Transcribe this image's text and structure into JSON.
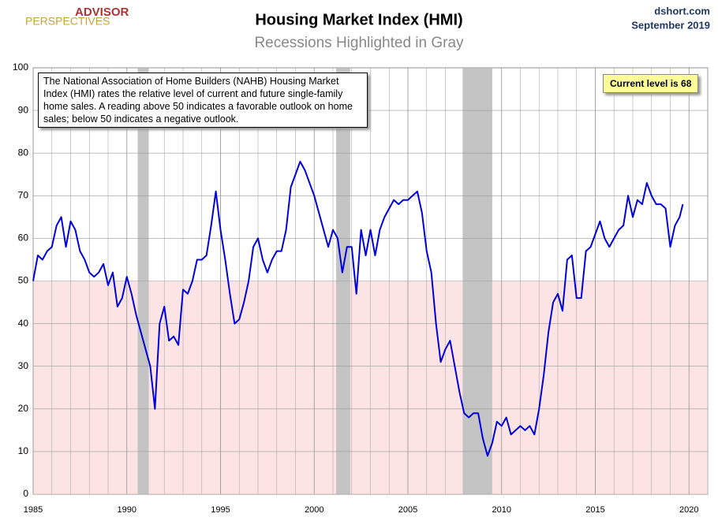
{
  "chart_data": {
    "type": "line",
    "title": "Housing Market Index (HMI)",
    "subtitle": "Recessions Highlighted in Gray",
    "source": "dshort.com",
    "date": "September 2019",
    "logo": [
      "ADVISOR",
      "PERSPECTIVES"
    ],
    "annotations": [
      "The National Association of Home Builders (NAHB) Housing Market Index (HMI) rates the relative level of current and future single-family home sales. A reading above 50 indicates a favorable outlook on home sales; below 50 indicates a negative outlook.",
      "Current level is 68"
    ],
    "x": [
      1985,
      1985.25,
      1985.5,
      1985.75,
      1986,
      1986.25,
      1986.5,
      1986.75,
      1987,
      1987.25,
      1987.5,
      1987.75,
      1988,
      1988.25,
      1988.5,
      1988.75,
      1989,
      1989.25,
      1989.5,
      1989.75,
      1990,
      1990.25,
      1990.5,
      1990.75,
      1991,
      1991.25,
      1991.5,
      1991.75,
      1992,
      1992.25,
      1992.5,
      1992.75,
      1993,
      1993.25,
      1993.5,
      1993.75,
      1994,
      1994.25,
      1994.5,
      1994.75,
      1995,
      1995.25,
      1995.5,
      1995.75,
      1996,
      1996.25,
      1996.5,
      1996.75,
      1997,
      1997.25,
      1997.5,
      1997.75,
      1998,
      1998.25,
      1998.5,
      1998.75,
      1999,
      1999.25,
      1999.5,
      1999.75,
      2000,
      2000.25,
      2000.5,
      2000.75,
      2001,
      2001.25,
      2001.5,
      2001.75,
      2002,
      2002.25,
      2002.5,
      2002.75,
      2003,
      2003.25,
      2003.5,
      2003.75,
      2004,
      2004.25,
      2004.5,
      2004.75,
      2005,
      2005.25,
      2005.5,
      2005.75,
      2006,
      2006.25,
      2006.5,
      2006.75,
      2007,
      2007.25,
      2007.5,
      2007.75,
      2008,
      2008.25,
      2008.5,
      2008.75,
      2009,
      2009.25,
      2009.5,
      2009.75,
      2010,
      2010.25,
      2010.5,
      2010.75,
      2011,
      2011.25,
      2011.5,
      2011.75,
      2012,
      2012.25,
      2012.5,
      2012.75,
      2013,
      2013.25,
      2013.5,
      2013.75,
      2014,
      2014.25,
      2014.5,
      2014.75,
      2015,
      2015.25,
      2015.5,
      2015.75,
      2016,
      2016.25,
      2016.5,
      2016.75,
      2017,
      2017.25,
      2017.5,
      2017.75,
      2018,
      2018.25,
      2018.5,
      2018.75,
      2019,
      2019.25,
      2019.5,
      2019.67
    ],
    "series": [
      {
        "name": "HMI",
        "color": "#0000dd",
        "values": [
          50,
          56,
          55,
          57,
          58,
          63,
          65,
          58,
          64,
          62,
          57,
          55,
          52,
          51,
          52,
          54,
          49,
          52,
          44,
          46,
          51,
          47,
          42,
          38,
          34,
          30,
          20,
          40,
          44,
          36,
          37,
          35,
          48,
          47,
          50,
          55,
          55,
          56,
          63,
          71,
          62,
          55,
          47,
          40,
          41,
          45,
          50,
          58,
          60,
          55,
          52,
          55,
          57,
          57,
          62,
          72,
          75,
          78,
          76,
          73,
          70,
          66,
          62,
          58,
          62,
          60,
          52,
          58,
          58,
          47,
          62,
          56,
          62,
          56,
          62,
          65,
          67,
          69,
          68,
          69,
          69,
          70,
          71,
          66,
          57,
          52,
          40,
          31,
          34,
          36,
          30,
          24,
          19,
          18,
          19,
          19,
          13,
          9,
          12,
          17,
          16,
          18,
          14,
          15,
          16,
          15,
          16,
          14,
          20,
          28,
          38,
          45,
          47,
          43,
          55,
          56,
          46,
          46,
          57,
          58,
          61,
          64,
          60,
          58,
          60,
          62,
          63,
          70,
          65,
          69,
          68,
          73,
          70,
          68,
          68,
          67,
          58,
          63,
          65,
          68
        ]
      }
    ],
    "xlim": [
      1985,
      2021
    ],
    "xticks": [
      1985,
      1990,
      1995,
      2000,
      2005,
      2010,
      2015,
      2020
    ],
    "ylim": [
      0,
      100
    ],
    "yticks": [
      0,
      10,
      20,
      30,
      40,
      50,
      60,
      70,
      80,
      90,
      100
    ],
    "grid": true,
    "recessions": [
      [
        1990.58,
        1991.17
      ],
      [
        2001.17,
        2001.92
      ],
      [
        2007.92,
        2009.5
      ]
    ],
    "shade_below": 50
  }
}
